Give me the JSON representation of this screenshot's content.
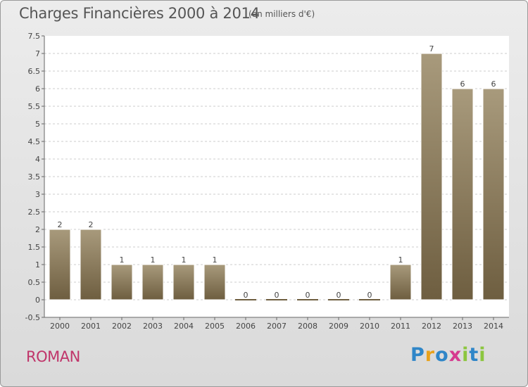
{
  "header": {
    "title": "Charges Financières 2000 à 2014",
    "subtitle": "(en milliers d'€)"
  },
  "footer": {
    "commune": "ROMAN",
    "brand": "Proxiti",
    "brand_letters": [
      {
        "ch": "P",
        "color": "#2f86c8"
      },
      {
        "ch": "r",
        "color": "#e8a21c"
      },
      {
        "ch": "o",
        "color": "#2f86c8"
      },
      {
        "ch": "x",
        "color": "#d63a8f"
      },
      {
        "ch": "i",
        "color": "#8cc63f"
      },
      {
        "ch": "t",
        "color": "#2f86c8"
      },
      {
        "ch": "i",
        "color": "#8cc63f"
      }
    ]
  },
  "chart_data": {
    "type": "bar",
    "title": "Charges Financières 2000 à 2014",
    "subtitle": "(en milliers d'€)",
    "categories": [
      "2000",
      "2001",
      "2002",
      "2003",
      "2004",
      "2005",
      "2006",
      "2007",
      "2008",
      "2009",
      "2010",
      "2011",
      "2012",
      "2013",
      "2014"
    ],
    "values": [
      2,
      2,
      1,
      1,
      1,
      1,
      0,
      0,
      0,
      0,
      0,
      1,
      7,
      6,
      6
    ],
    "value_labels": [
      "2",
      "2",
      "1",
      "1",
      "1",
      "1",
      "0",
      "0",
      "0",
      "0",
      "0",
      "1",
      "7",
      "6",
      "6"
    ],
    "ylim": [
      -0.5,
      7.5
    ],
    "y_ticks": [
      -0.5,
      0,
      0.5,
      1,
      1.5,
      2,
      2.5,
      3,
      3.5,
      4,
      4.5,
      5,
      5.5,
      6,
      6.5,
      7,
      7.5
    ],
    "y_tick_labels": [
      "-0.5",
      "0",
      "0.5",
      "1",
      "1.5",
      "2",
      "2.5",
      "3",
      "3.5",
      "4",
      "4.5",
      "5",
      "5.5",
      "6",
      "6.5",
      "7",
      "7.5"
    ],
    "grid": "horizontal dashed",
    "colors": {
      "bar_top": "#a89a7c",
      "bar_bottom": "#6e5e40",
      "plot_bg": "#ffffff",
      "grid": "#cccccc"
    }
  }
}
